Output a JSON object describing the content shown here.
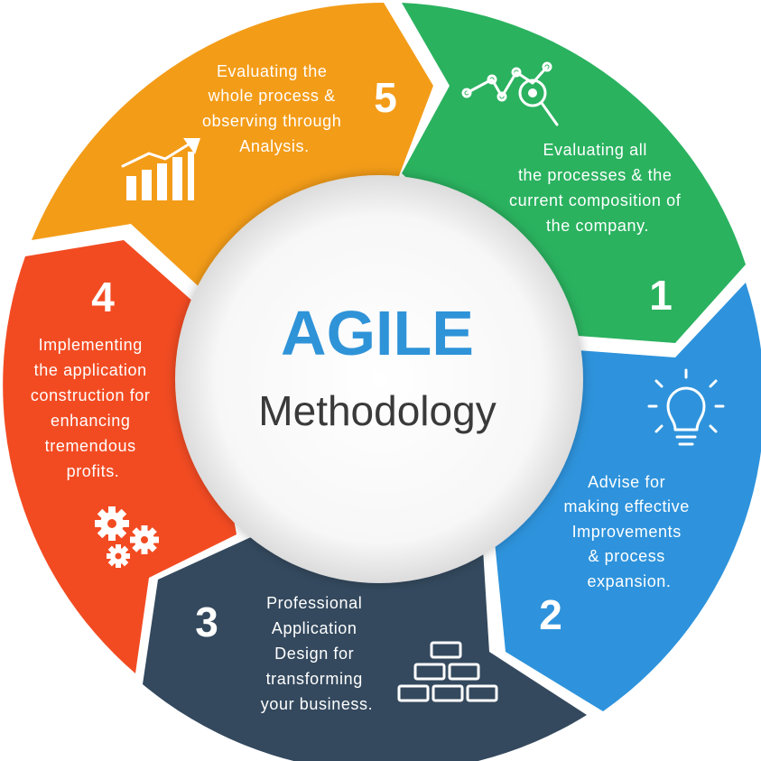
{
  "center": {
    "title": "AGILE",
    "subtitle": "Methodology",
    "title_color": "#2f93d8"
  },
  "segments": [
    {
      "number": "1",
      "color": "#2ab25f",
      "icon": "analytics-magnifier-icon",
      "lines": [
        "Evaluating all",
        "the processes & the",
        "current composition of",
        "the company."
      ]
    },
    {
      "number": "2",
      "color": "#2e93dc",
      "icon": "lightbulb-icon",
      "lines": [
        "Advise for",
        "making effective",
        "Improvements",
        "& process",
        "expansion."
      ]
    },
    {
      "number": "3",
      "color": "#34495e",
      "icon": "bricks-icon",
      "lines": [
        "Professional",
        "Application",
        "Design for",
        "transforming",
        "your business."
      ]
    },
    {
      "number": "4",
      "color": "#f24b22",
      "icon": "gears-icon",
      "lines": [
        "Implementing",
        "the application",
        "construction for",
        "enhancing",
        "tremendous",
        "profits."
      ]
    },
    {
      "number": "5",
      "color": "#f39c18",
      "icon": "growth-chart-icon",
      "lines": [
        "Evaluating the",
        "whole process &",
        "observing through",
        "Analysis."
      ]
    }
  ]
}
